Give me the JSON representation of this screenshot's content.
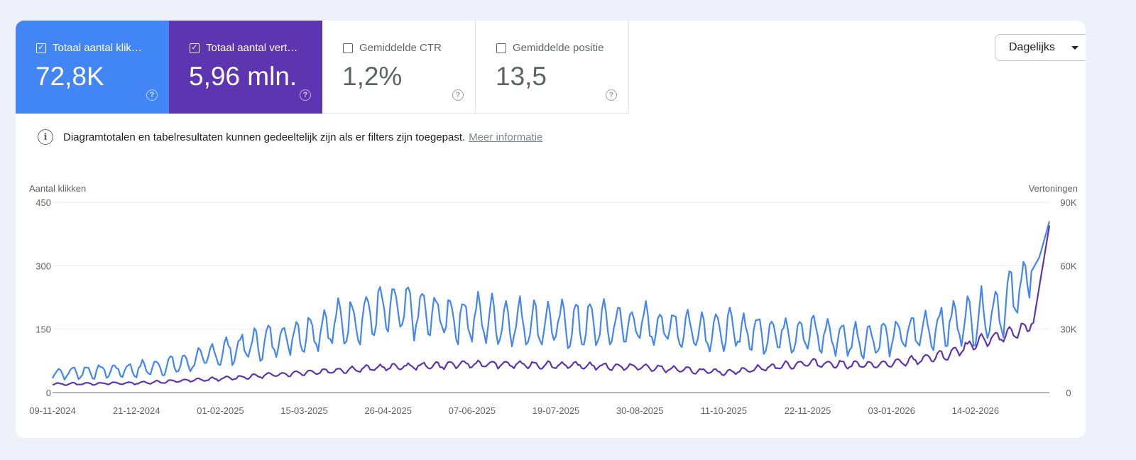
{
  "metrics": [
    {
      "label": "Totaal aantal klik…",
      "value": "72,8K",
      "checked": true,
      "color": "#4285f4"
    },
    {
      "label": "Totaal aantal vert…",
      "value": "5,96 mln.",
      "checked": true,
      "color": "#5e35b1"
    },
    {
      "label": "Gemiddelde CTR",
      "value": "1,2%",
      "checked": false
    },
    {
      "label": "Gemiddelde positie",
      "value": "13,5",
      "checked": false
    }
  ],
  "dropdown": {
    "label": "Dagelijks"
  },
  "info": {
    "text": "Diagramtotalen en tabelresultaten kunnen gedeeltelijk zijn als er filters zijn toegepast.",
    "link": "Meer informatie"
  },
  "chart_data": {
    "type": "line",
    "y_left_title": "Aantal klikken",
    "y_right_title": "Vertoningen",
    "y_left_ticks": [
      "450",
      "300",
      "150",
      "0"
    ],
    "y_right_ticks": [
      "90K",
      "60K",
      "30K",
      "0"
    ],
    "ylim_left": [
      0,
      450
    ],
    "ylim_right": [
      0,
      90000
    ],
    "x_start": "2024-11-09",
    "x_end": "2026-03-23",
    "x_tick_labels": [
      "09-11-2024",
      "21-12-2024",
      "01-02-2025",
      "15-03-2025",
      "26-04-2025",
      "07-06-2025",
      "19-07-2025",
      "30-08-2025",
      "11-10-2025",
      "22-11-2025",
      "03-01-2026",
      "14-02-2026"
    ],
    "grid": true,
    "series": [
      {
        "name": "Totaal aantal klikken",
        "axis": "left",
        "color": "#4285f4",
        "anchors": [
          [
            "2024-11-09",
            45
          ],
          [
            "2024-12-21",
            55
          ],
          [
            "2025-01-15",
            70
          ],
          [
            "2025-02-01",
            95
          ],
          [
            "2025-03-01",
            125
          ],
          [
            "2025-03-15",
            140
          ],
          [
            "2025-04-26",
            195
          ],
          [
            "2025-05-15",
            185
          ],
          [
            "2025-06-07",
            175
          ],
          [
            "2025-07-19",
            160
          ],
          [
            "2025-08-30",
            160
          ],
          [
            "2025-10-11",
            145
          ],
          [
            "2025-11-22",
            140
          ],
          [
            "2025-12-15",
            125
          ],
          [
            "2026-01-03",
            130
          ],
          [
            "2026-02-14",
            175
          ],
          [
            "2026-03-01",
            205
          ],
          [
            "2026-03-12",
            270
          ],
          [
            "2026-03-18",
            320
          ],
          [
            "2026-03-23",
            405
          ]
        ]
      },
      {
        "name": "Totaal aantal vertoningen",
        "axis": "right",
        "color": "#5e35b1",
        "anchors": [
          [
            "2024-11-09",
            4000
          ],
          [
            "2024-12-21",
            4500
          ],
          [
            "2025-02-01",
            6500
          ],
          [
            "2025-03-15",
            9500
          ],
          [
            "2025-04-26",
            12000
          ],
          [
            "2025-06-07",
            13500
          ],
          [
            "2025-07-19",
            13000
          ],
          [
            "2025-08-30",
            12000
          ],
          [
            "2025-10-11",
            9500
          ],
          [
            "2025-11-22",
            14000
          ],
          [
            "2025-12-20",
            13000
          ],
          [
            "2026-01-03",
            13500
          ],
          [
            "2026-02-01",
            18000
          ],
          [
            "2026-02-14",
            23000
          ],
          [
            "2026-03-10",
            30000
          ],
          [
            "2026-03-15",
            33000
          ],
          [
            "2026-03-23",
            79000
          ]
        ]
      }
    ]
  }
}
